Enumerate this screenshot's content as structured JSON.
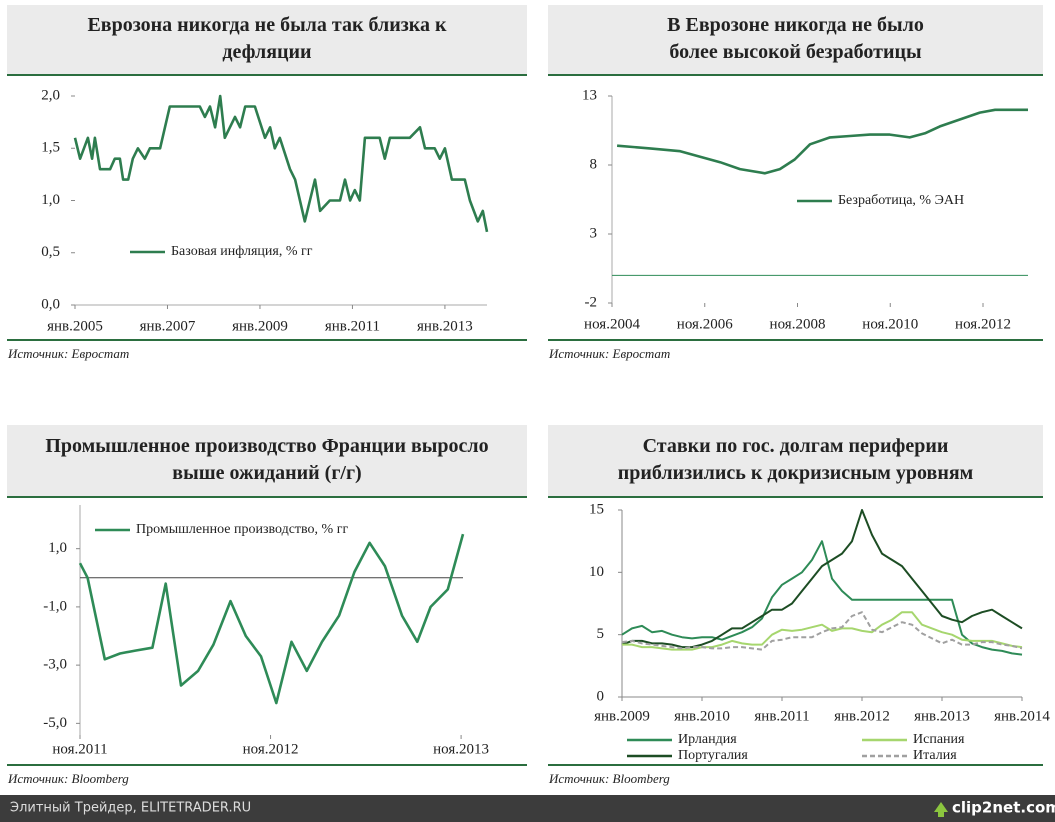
{
  "chart_data": [
    {
      "type": "line",
      "title": [
        "Еврозона никогда не была так близка к",
        "дефляции"
      ],
      "x": [
        2005.0,
        2005.11,
        2005.28,
        2005.37,
        2005.43,
        2005.54,
        2005.76,
        2005.86,
        2005.97,
        2006.04,
        2006.15,
        2006.25,
        2006.36,
        2006.51,
        2006.62,
        2006.84,
        2007.05,
        2007.38,
        2007.7,
        2007.81,
        2007.92,
        2008.03,
        2008.14,
        2008.24,
        2008.46,
        2008.57,
        2008.68,
        2008.89,
        2009.11,
        2009.22,
        2009.32,
        2009.43,
        2009.65,
        2009.76,
        2009.97,
        2010.08,
        2010.19,
        2010.3,
        2010.51,
        2010.73,
        2010.84,
        2010.95,
        2011.05,
        2011.16,
        2011.27,
        2011.59,
        2011.7,
        2011.81,
        2012.24,
        2012.46,
        2012.57,
        2012.78,
        2012.89,
        2013.0,
        2013.15,
        2013.43,
        2013.54,
        2013.71,
        2013.82,
        2013.91
      ],
      "series": [
        {
          "name": "Базовая инфляция, % гг",
          "color": "#2e7d4f",
          "values": [
            1.6,
            1.4,
            1.6,
            1.4,
            1.6,
            1.3,
            1.3,
            1.4,
            1.4,
            1.2,
            1.2,
            1.4,
            1.5,
            1.4,
            1.5,
            1.5,
            1.9,
            1.9,
            1.9,
            1.8,
            1.9,
            1.7,
            2.0,
            1.6,
            1.8,
            1.7,
            1.9,
            1.9,
            1.6,
            1.7,
            1.5,
            1.6,
            1.3,
            1.2,
            0.8,
            1.0,
            1.2,
            0.9,
            1.0,
            1.0,
            1.2,
            1.0,
            1.1,
            1.0,
            1.6,
            1.6,
            1.4,
            1.6,
            1.6,
            1.7,
            1.5,
            1.5,
            1.4,
            1.5,
            1.2,
            1.2,
            1.0,
            0.8,
            0.9,
            0.7
          ]
        }
      ],
      "xlim": [
        2005,
        2013.91
      ],
      "xticks": [
        {
          "value": 2005,
          "label": "янв.2005"
        },
        {
          "value": 2007,
          "label": "янв.2007"
        },
        {
          "value": 2009,
          "label": "янв.2009"
        },
        {
          "value": 2011,
          "label": "янв.2011"
        },
        {
          "value": 2013,
          "label": "янв.2013"
        }
      ],
      "ylim": [
        0,
        2
      ],
      "yticks": [
        {
          "value": 0,
          "label": "0,0"
        },
        {
          "value": 0.5,
          "label": "0,5"
        },
        {
          "value": 1,
          "label": "1,0"
        },
        {
          "value": 1.5,
          "label": "1,5"
        },
        {
          "value": 2,
          "label": "2,0"
        }
      ],
      "source": "Источник: Евростат"
    },
    {
      "type": "line",
      "title": [
        "В Еврозоне никогда не было",
        "более высокой  безработицы"
      ],
      "x": [
        2004.94,
        2005.65,
        2006.3,
        2006.73,
        2007.16,
        2007.59,
        2008.13,
        2008.45,
        2008.77,
        2009.1,
        2009.53,
        2009.96,
        2010.39,
        2010.82,
        2011.25,
        2011.58,
        2011.9,
        2012.33,
        2012.76,
        2013.09,
        2013.8
      ],
      "series": [
        {
          "name": "Безработица, % ЭАН",
          "color": "#2e7d4f",
          "values": [
            9.4,
            9.2,
            9.0,
            8.6,
            8.2,
            7.7,
            7.4,
            7.7,
            8.4,
            9.5,
            10.0,
            10.1,
            10.2,
            10.2,
            10.0,
            10.3,
            10.8,
            11.3,
            11.8,
            12.0,
            12.0
          ]
        }
      ],
      "xlim": [
        2004.83,
        2013.8
      ],
      "xticks": [
        {
          "value": 2004.83,
          "label": "ноя.2004"
        },
        {
          "value": 2006.83,
          "label": "ноя.2006"
        },
        {
          "value": 2008.83,
          "label": "ноя.2008"
        },
        {
          "value": 2010.83,
          "label": "ноя.2010"
        },
        {
          "value": 2012.83,
          "label": "ноя.2012"
        }
      ],
      "ylim": [
        -2,
        13
      ],
      "yticks": [
        -2,
        3,
        8,
        13
      ],
      "source": "Источник: Евростат"
    },
    {
      "type": "line",
      "title": [
        "Промышленное производство Франции выросло",
        "выше ожиданий (г/г)"
      ],
      "x": [
        2011.83,
        2011.87,
        2011.96,
        2012.04,
        2012.12,
        2012.21,
        2012.28,
        2012.36,
        2012.45,
        2012.53,
        2012.62,
        2012.7,
        2012.78,
        2012.86,
        2012.94,
        2013.02,
        2013.1,
        2013.19,
        2013.27,
        2013.35,
        2013.43,
        2013.52,
        2013.6,
        2013.67,
        2013.76,
        2013.84
      ],
      "series": [
        {
          "name": "Промышленное производство, % гг",
          "color": "#2e8b57",
          "values": [
            0.5,
            0.0,
            -2.8,
            -2.6,
            -2.5,
            -2.4,
            -0.2,
            -3.7,
            -3.2,
            -2.3,
            -0.8,
            -2.0,
            -2.7,
            -4.3,
            -2.2,
            -3.2,
            -2.2,
            -1.3,
            0.2,
            1.2,
            0.4,
            -1.3,
            -2.2,
            -1.0,
            -0.4,
            1.5
          ]
        }
      ],
      "xlim": [
        2011.83,
        2013.84
      ],
      "xticks": [
        {
          "value": 2011.83,
          "label": "ноя.2011"
        },
        {
          "value": 2012.83,
          "label": "ноя.2012"
        },
        {
          "value": 2013.83,
          "label": "ноя.2013"
        }
      ],
      "ylim": [
        -5.4,
        2.5
      ],
      "yticks": [
        {
          "value": -5,
          "label": "-5,0"
        },
        {
          "value": -3,
          "label": "-3,0"
        },
        {
          "value": -1,
          "label": "-1,0"
        },
        {
          "value": 1,
          "label": "1,0"
        }
      ],
      "source": "Источник: Bloomberg"
    },
    {
      "type": "line",
      "title": [
        "Ставки по гос. долгам периферии",
        "приблизились к докризисным уровням"
      ],
      "x": [
        2009,
        2009.125,
        2009.25,
        2009.375,
        2009.5,
        2009.625,
        2009.75,
        2009.875,
        2010,
        2010.125,
        2010.25,
        2010.375,
        2010.5,
        2010.625,
        2010.75,
        2010.875,
        2011,
        2011.125,
        2011.25,
        2011.375,
        2011.5,
        2011.625,
        2011.75,
        2011.875,
        2012,
        2012.125,
        2012.25,
        2012.375,
        2012.5,
        2012.625,
        2012.75,
        2012.875,
        2013,
        2013.125,
        2013.25,
        2013.375,
        2013.5,
        2013.625,
        2013.75,
        2013.875,
        2014
      ],
      "series": [
        {
          "name": "Ирландия",
          "color": "#2e8b57",
          "values": [
            5.0,
            5.5,
            5.7,
            5.2,
            5.3,
            5.0,
            4.8,
            4.7,
            4.8,
            4.8,
            4.6,
            4.9,
            5.2,
            5.6,
            6.3,
            8.0,
            9.0,
            9.5,
            10.0,
            11.0,
            12.5,
            9.5,
            8.5,
            7.8,
            7.8,
            7.8,
            7.8,
            7.8,
            7.8,
            7.8,
            7.8,
            7.8,
            7.8,
            7.8,
            5.0,
            4.3,
            4.0,
            3.8,
            3.7,
            3.5,
            3.4
          ]
        },
        {
          "name": "Португалия",
          "color": "#1d4d24",
          "values": [
            4.2,
            4.5,
            4.5,
            4.3,
            4.3,
            4.2,
            4.0,
            4.0,
            4.2,
            4.5,
            5.0,
            5.5,
            5.5,
            6.0,
            6.5,
            7.0,
            7.0,
            7.5,
            8.5,
            9.5,
            10.5,
            11.0,
            11.5,
            12.5,
            15.0,
            13.0,
            11.5,
            11.0,
            10.5,
            9.5,
            8.5,
            7.5,
            6.5,
            6.2,
            6.0,
            6.5,
            6.8,
            7.0,
            6.5,
            6.0,
            5.5
          ]
        },
        {
          "name": "Испания",
          "color": "#a6d66e",
          "values": [
            4.2,
            4.2,
            4.0,
            4.0,
            3.9,
            3.8,
            3.8,
            3.8,
            4.0,
            4.0,
            4.2,
            4.5,
            4.3,
            4.2,
            4.2,
            5.0,
            5.4,
            5.3,
            5.4,
            5.6,
            5.8,
            5.3,
            5.5,
            5.5,
            5.3,
            5.2,
            5.8,
            6.2,
            6.8,
            6.8,
            5.8,
            5.5,
            5.2,
            5.0,
            4.6,
            4.5,
            4.5,
            4.5,
            4.3,
            4.1,
            4.0
          ]
        },
        {
          "name": "Италия",
          "color": "#a0a0a0",
          "dash": true,
          "values": [
            4.4,
            4.5,
            4.3,
            4.2,
            4.1,
            4.0,
            3.9,
            4.0,
            4.0,
            3.9,
            3.9,
            4.0,
            4.0,
            3.9,
            3.8,
            4.5,
            4.6,
            4.8,
            4.8,
            4.8,
            5.2,
            5.5,
            5.6,
            6.5,
            6.8,
            5.4,
            5.2,
            5.6,
            6.0,
            5.8,
            5.1,
            4.7,
            4.3,
            4.6,
            4.2,
            4.2,
            4.4,
            4.4,
            4.2,
            4.1,
            3.9
          ]
        }
      ],
      "xlim": [
        2009,
        2014
      ],
      "xticks": [
        {
          "value": 2009,
          "label": "янв.2009"
        },
        {
          "value": 2010,
          "label": "янв.2010"
        },
        {
          "value": 2011,
          "label": "янв.2011"
        },
        {
          "value": 2012,
          "label": "янв.2012"
        },
        {
          "value": 2013,
          "label": "янв.2013"
        },
        {
          "value": 2014,
          "label": "янв.2014"
        }
      ],
      "ylim": [
        0,
        15
      ],
      "yticks": [
        0,
        5,
        10,
        15
      ],
      "source": "Источник: Bloomberg"
    }
  ],
  "footer": {
    "site": "Элитный Трейдер, ELITETRADER.RU",
    "logo": "clip2net.com"
  }
}
